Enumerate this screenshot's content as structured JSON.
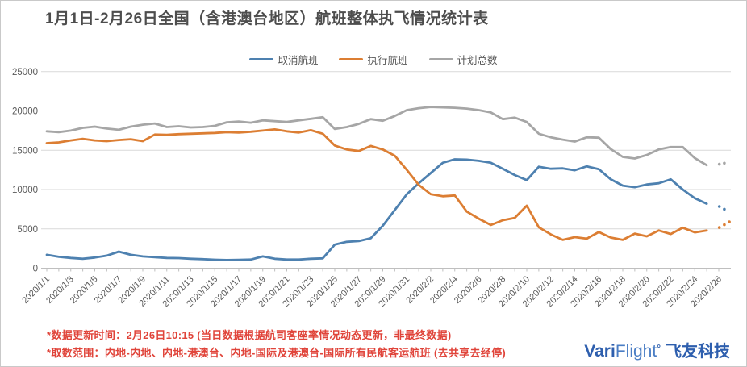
{
  "chart_data": {
    "type": "line",
    "title": "1月1日-2月26日全国（含港澳台地区）航班整体执飞情况统计表",
    "categories": [
      "2020/1/1",
      "2020/1/2",
      "2020/1/3",
      "2020/1/4",
      "2020/1/5",
      "2020/1/6",
      "2020/1/7",
      "2020/1/8",
      "2020/1/9",
      "2020/1/10",
      "2020/1/11",
      "2020/1/12",
      "2020/1/13",
      "2020/1/14",
      "2020/1/15",
      "2020/1/16",
      "2020/1/17",
      "2020/1/18",
      "2020/1/19",
      "2020/1/20",
      "2020/1/21",
      "2020/1/22",
      "2020/1/23",
      "2020/1/24",
      "2020/1/25",
      "2020/1/26",
      "2020/1/27",
      "2020/1/28",
      "2020/1/29",
      "2020/1/30",
      "2020/1/31",
      "2020/2/1",
      "2020/2/2",
      "2020/2/3",
      "2020/2/4",
      "2020/2/5",
      "2020/2/6",
      "2020/2/7",
      "2020/2/8",
      "2020/2/9",
      "2020/2/10",
      "2020/2/11",
      "2020/2/12",
      "2020/2/13",
      "2020/2/14",
      "2020/2/15",
      "2020/2/16",
      "2020/2/17",
      "2020/2/18",
      "2020/2/19",
      "2020/2/20",
      "2020/2/21",
      "2020/2/22",
      "2020/2/23",
      "2020/2/24",
      "2020/2/25",
      "2020/2/26"
    ],
    "series": [
      {
        "name": "取消航班",
        "color": "#4e81b0",
        "projected_last_point": true,
        "projection_dots": 2,
        "values": [
          1700,
          1450,
          1300,
          1200,
          1350,
          1600,
          2100,
          1700,
          1500,
          1400,
          1300,
          1280,
          1200,
          1150,
          1080,
          1040,
          1070,
          1100,
          1500,
          1200,
          1100,
          1100,
          1200,
          1250,
          3000,
          3350,
          3450,
          3800,
          5400,
          7400,
          9400,
          10800,
          12100,
          13400,
          13850,
          13800,
          13650,
          13400,
          12650,
          11850,
          11200,
          12900,
          12650,
          12700,
          12450,
          12950,
          12600,
          11300,
          10500,
          10300,
          10650,
          10800,
          11300,
          10000,
          8900,
          8200,
          7500
        ]
      },
      {
        "name": "执行航班",
        "color": "#dc7e33",
        "projected_last_point": true,
        "projection_dots": 3,
        "values": [
          15900,
          16000,
          16250,
          16450,
          16250,
          16150,
          16300,
          16400,
          16150,
          17000,
          16950,
          17050,
          17100,
          17150,
          17200,
          17300,
          17250,
          17350,
          17500,
          17650,
          17400,
          17250,
          17550,
          17100,
          15600,
          15100,
          14900,
          15550,
          15100,
          14300,
          12500,
          10600,
          9400,
          9150,
          9250,
          7200,
          6300,
          5500,
          6100,
          6400,
          7950,
          5200,
          4300,
          3600,
          3950,
          3750,
          4600,
          3900,
          3600,
          4400,
          4050,
          4800,
          4350,
          5150,
          4550,
          4800,
          5900
        ]
      },
      {
        "name": "计划总数",
        "color": "#a6a6a6",
        "projected_last_point": true,
        "projection_dots": 2,
        "values": [
          17400,
          17300,
          17500,
          17850,
          18000,
          17750,
          17600,
          18000,
          18250,
          18400,
          17950,
          18050,
          17900,
          17950,
          18100,
          18550,
          18650,
          18500,
          18800,
          18700,
          18600,
          18800,
          19000,
          19200,
          17700,
          17950,
          18350,
          18950,
          18750,
          19350,
          20100,
          20350,
          20500,
          20450,
          20400,
          20300,
          20100,
          19800,
          18950,
          19150,
          18600,
          17100,
          16650,
          16350,
          16100,
          16650,
          16600,
          15150,
          14150,
          13950,
          14400,
          15100,
          15400,
          15400,
          14000,
          13100,
          13350
        ]
      }
    ],
    "ylim": [
      0,
      25000
    ],
    "ytick_step": 5000,
    "ytick_labels": [
      "0",
      "5000",
      "10000",
      "15000",
      "20000",
      "25000"
    ],
    "x_label_every": 2,
    "grid": "horizontal",
    "legend_position": "top",
    "note": "2020/2/26 values drawn as dotted projection points"
  },
  "footnotes": {
    "line1": "*数据更新时间：2月26日10:15 (当日数据根据航司客座率情况动态更新，非最终数据)",
    "line2": "*取数范围：内地-内地、内地-港澳台、内地-国际及港澳台-国际所有民航客运航班 (去共享去经停)"
  },
  "logo": {
    "latin_bold": "Vari",
    "latin_light": "Flight",
    "degree": "°",
    "cn": "飞友科技"
  },
  "colors": {
    "cancelled_series": "#4e81b0",
    "executed_series": "#dc7e33",
    "planned_series": "#a6a6a6",
    "grid_line": "#d9d9d9",
    "axis_line": "#bfbfbf",
    "axis_text": "#595959",
    "title_text": "#4d4d4d",
    "footnote_red": "#e0443a",
    "logo_blue": "#2e5fae"
  }
}
